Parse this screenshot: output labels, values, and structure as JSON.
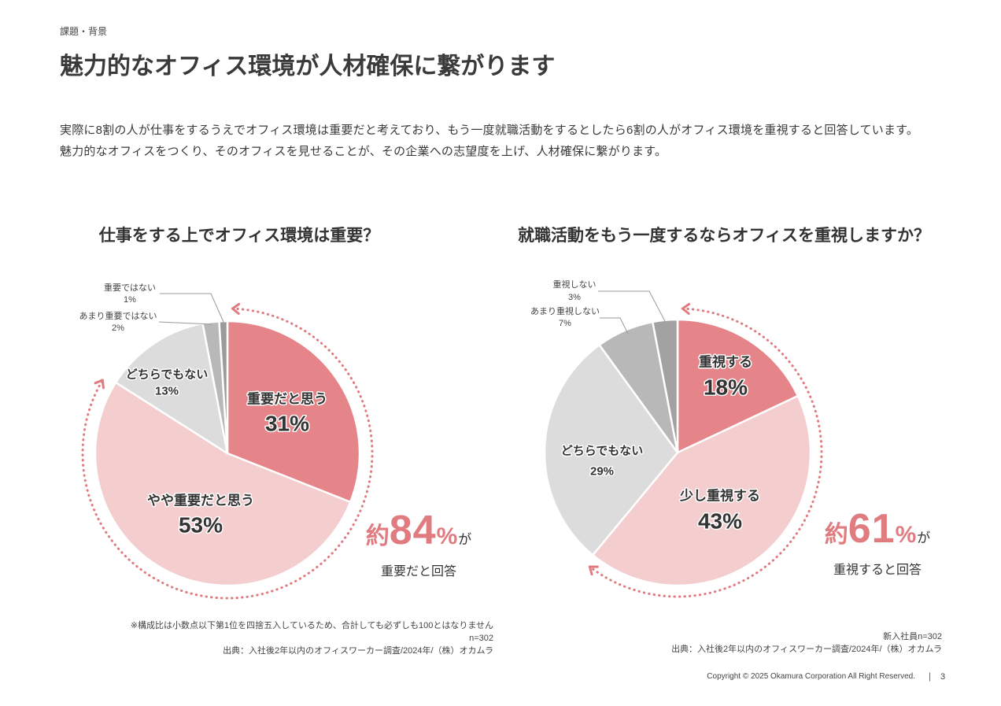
{
  "header": {
    "section_label": "課題・背景",
    "title": "魅力的なオフィス環境が人材確保に繋がります",
    "body_lines": [
      "実際に8割の人が仕事をするうえでオフィス環境は重要だと考えており、もう一度就職活動をするとしたら6割の人がオフィス環境を重視すると回答しています。",
      "魅力的なオフィスをつくり、そのオフィスを見せることが、その企業への志望度を上げ、人材確保に繋がります。"
    ]
  },
  "colors": {
    "accent": "#e07b80",
    "slice_border": "#ffffff"
  },
  "chart_data": [
    {
      "type": "pie",
      "title": "仕事をする上でオフィス環境は重要？",
      "slices": [
        {
          "label": "重要だと思う",
          "value": 31,
          "value_label": "31%",
          "color": "#e5858a"
        },
        {
          "label": "やや重要だと思う",
          "value": 53,
          "value_label": "53%",
          "color": "#f4cdcf"
        },
        {
          "label": "どちらでもない",
          "value": 13,
          "value_label": "13%",
          "color": "#dcdcdc"
        },
        {
          "label": "あまり重要ではない",
          "value": 2,
          "value_label": "2%",
          "color": "#b8b8b8"
        },
        {
          "label": "重要ではない",
          "value": 1,
          "value_label": "1%",
          "color": "#9b9b9b"
        }
      ],
      "callout": {
        "prefix": "約",
        "value": 84,
        "unit": "%",
        "suffix": "が",
        "caption": "重要だと回答"
      },
      "notes": [
        "※構成比は小数点以下第1位を四捨五入しているため、合計しても必ずしも100とはなりません",
        "n=302",
        "出典：入社後2年以内のオフィスワーカー調査/2024年/（株）オカムラ"
      ]
    },
    {
      "type": "pie",
      "title": "就職活動をもう一度するならオフィスを重視しますか？",
      "slices": [
        {
          "label": "重視する",
          "value": 18,
          "value_label": "18%",
          "color": "#e5858a"
        },
        {
          "label": "少し重視する",
          "value": 43,
          "value_label": "43%",
          "color": "#f4cdcf"
        },
        {
          "label": "どちらでもない",
          "value": 29,
          "value_label": "29%",
          "color": "#dcdcdc"
        },
        {
          "label": "あまり重視しない",
          "value": 7,
          "value_label": "7%",
          "color": "#b8b8b8"
        },
        {
          "label": "重視しない",
          "value": 3,
          "value_label": "3%",
          "color": "#a2a2a2"
        }
      ],
      "callout": {
        "prefix": "約",
        "value": 61,
        "unit": "%",
        "suffix": "が",
        "caption": "重視すると回答"
      },
      "notes": [
        "新入社員n=302",
        "出典：入社後2年以内のオフィスワーカー調査/2024年/（株）オカムラ"
      ]
    }
  ],
  "footer": {
    "copyright": "Copyright © 2025 Okamura Corporation All Right Reserved.",
    "separator": "|",
    "page_number": "3"
  }
}
